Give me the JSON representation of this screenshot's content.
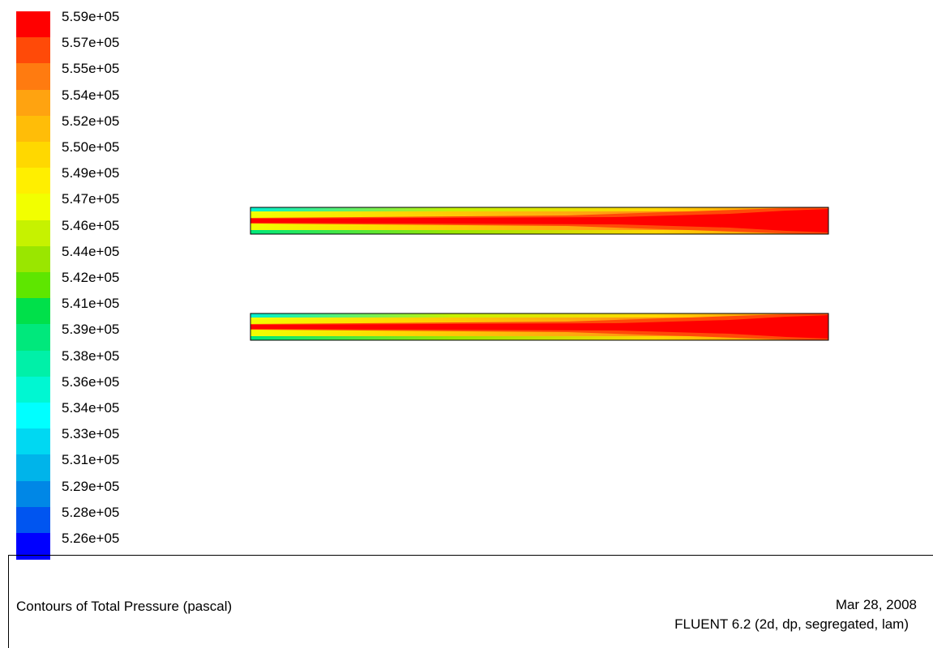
{
  "legend": {
    "levels": [
      {
        "label": "5.59e+05",
        "color": "#ff0000"
      },
      {
        "label": "5.57e+05",
        "color": "#ff4a08"
      },
      {
        "label": "5.55e+05",
        "color": "#ff7b10"
      },
      {
        "label": "5.54e+05",
        "color": "#ffa310"
      },
      {
        "label": "5.52e+05",
        "color": "#ffbd08"
      },
      {
        "label": "5.50e+05",
        "color": "#ffd800"
      },
      {
        "label": "5.49e+05",
        "color": "#ffef00"
      },
      {
        "label": "5.47e+05",
        "color": "#f2ff00"
      },
      {
        "label": "5.46e+05",
        "color": "#c6f200"
      },
      {
        "label": "5.44e+05",
        "color": "#9ae600"
      },
      {
        "label": "5.42e+05",
        "color": "#5ee600"
      },
      {
        "label": "5.41e+05",
        "color": "#00e04a"
      },
      {
        "label": "5.39e+05",
        "color": "#00e87c"
      },
      {
        "label": "5.38e+05",
        "color": "#00f0a8"
      },
      {
        "label": "5.36e+05",
        "color": "#00f7d2"
      },
      {
        "label": "5.34e+05",
        "color": "#00ffff"
      },
      {
        "label": "5.33e+05",
        "color": "#00d8f2"
      },
      {
        "label": "5.31e+05",
        "color": "#00b4ea"
      },
      {
        "label": "5.29e+05",
        "color": "#0087e6"
      },
      {
        "label": "5.28e+05",
        "color": "#0055f0"
      },
      {
        "label": "5.26e+05",
        "color": "#0000ff"
      }
    ]
  },
  "footer": {
    "title": "Contours of Total Pressure (pascal)",
    "date": "Mar 28, 2008",
    "version": "FLUENT 6.2 (2d, dp, segregated, lam)"
  }
}
